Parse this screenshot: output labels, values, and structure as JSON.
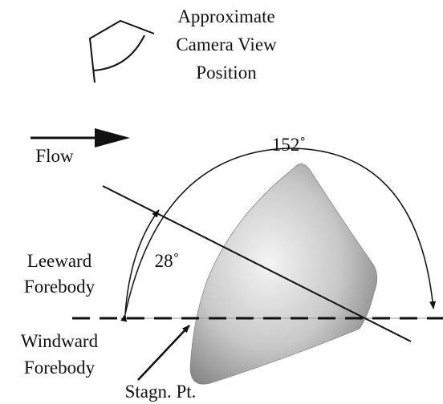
{
  "camera_label": [
    "Approximate",
    "Camera View",
    "Position"
  ],
  "flow_label": "Flow",
  "angles": [
    {
      "label": "152˚"
    },
    {
      "label": "28˚"
    }
  ],
  "regions": [
    {
      "lines": [
        "Leeward",
        "Forebody"
      ]
    },
    {
      "lines": [
        "Windward",
        "Forebody"
      ]
    }
  ],
  "stagnation_label": "Stagn. Pt."
}
